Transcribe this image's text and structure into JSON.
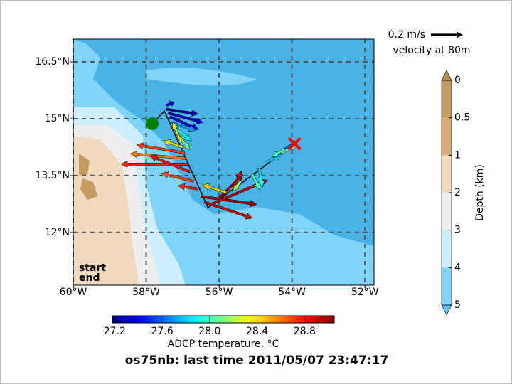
{
  "chart_data": {
    "type": "quiver",
    "title": "os75nb: last time 2011/05/07 23:47:17",
    "xlim": [
      -60,
      -51.75
    ],
    "ylim": [
      10.61,
      17.1
    ],
    "xticks": [
      {
        "value": -60,
        "label": "60°W"
      },
      {
        "value": -58,
        "label": "58°W"
      },
      {
        "value": -56,
        "label": "56°W"
      },
      {
        "value": -54,
        "label": "54°W"
      },
      {
        "value": -52,
        "label": "52°W"
      }
    ],
    "yticks": [
      {
        "value": 12,
        "label": "12°N"
      },
      {
        "value": 13.5,
        "label": "13.5°N"
      },
      {
        "value": 15,
        "label": "15°N"
      },
      {
        "value": 16.5,
        "label": "16.5°N"
      }
    ],
    "grid": true,
    "track": {
      "lon": [
        -57.83,
        -57.5,
        -56.3,
        -53.93
      ],
      "lat": [
        14.87,
        15.2,
        12.65,
        14.34
      ],
      "color": "#000000"
    },
    "start_label": "start",
    "start_color": "#008000",
    "end_label": "end",
    "end_color": "#ff0000",
    "arrows": {
      "lon": [
        -57.45,
        -57.4,
        -57.35,
        -57.45,
        -57.3,
        -57.2,
        -57.15,
        -57.05,
        -57.0,
        -56.95,
        -56.9,
        -56.85,
        -56.8,
        -56.7,
        -56.6,
        -56.5,
        -56.4,
        -56.2,
        -56.0,
        -55.8,
        -55.6,
        -55.4,
        -55.1,
        -54.9,
        -54.7,
        -54.5,
        -54.3,
        -54.2
      ],
      "lat": [
        15.25,
        15.15,
        15.05,
        15.35,
        14.9,
        14.75,
        14.6,
        14.4,
        14.25,
        14.1,
        13.95,
        13.8,
        13.6,
        13.35,
        13.15,
        12.95,
        12.8,
        12.75,
        12.9,
        13.05,
        13.2,
        13.35,
        13.55,
        13.7,
        13.85,
        14.0,
        14.1,
        14.2
      ],
      "u": [
        0.2,
        0.22,
        0.18,
        0.05,
        0.15,
        0.1,
        0.08,
        -0.05,
        -0.12,
        -0.3,
        -0.35,
        -0.42,
        -0.25,
        -0.2,
        -0.12,
        0.35,
        0.3,
        0.35,
        0.15,
        -0.15,
        0.05,
        -0.05,
        0.05,
        0.02,
        0.1,
        0.15,
        0.1,
        -0.08
      ],
      "v": [
        -0.03,
        -0.06,
        -0.08,
        0.02,
        -0.05,
        -0.08,
        -0.1,
        0.12,
        0.04,
        0.05,
        0.03,
        0.0,
        0.1,
        0.05,
        0.02,
        -0.05,
        -0.1,
        0.15,
        0.15,
        0.05,
        0.1,
        -0.06,
        -0.1,
        -0.12,
        0.05,
        0.1,
        0.05,
        -0.05
      ],
      "temp": [
        27.25,
        27.3,
        27.35,
        27.3,
        27.7,
        27.9,
        28.1,
        28.4,
        28.4,
        28.7,
        28.6,
        28.75,
        28.8,
        28.7,
        28.75,
        29.0,
        28.9,
        28.95,
        29.0,
        28.45,
        28.9,
        28.2,
        28.0,
        27.9,
        27.8,
        27.6,
        28.1,
        28.0
      ]
    },
    "quiver_key": {
      "value": 0.2,
      "label": "0.2 m/s",
      "note": "velocity at 80m"
    },
    "temp_colorbar": {
      "label": "ADCP temperature, °C",
      "clim": [
        27.18,
        29.05
      ],
      "ticks": [
        27.2,
        27.6,
        {
          "value": 28.0,
          "label": "28.0"
        },
        28.4,
        28.8
      ],
      "colormap": "jet"
    },
    "depth_colorbar": {
      "label": "Depth (km)",
      "levels": [
        0,
        0.5,
        1,
        2,
        3,
        4,
        5
      ],
      "colors": [
        "#c49a5e",
        "#d8ae78",
        "#f1d9c0",
        "#eeeeee",
        "#cdeffc",
        "#80d4f8"
      ],
      "extend_colors": [
        "#b7894e",
        "#5ec4ef"
      ]
    }
  }
}
